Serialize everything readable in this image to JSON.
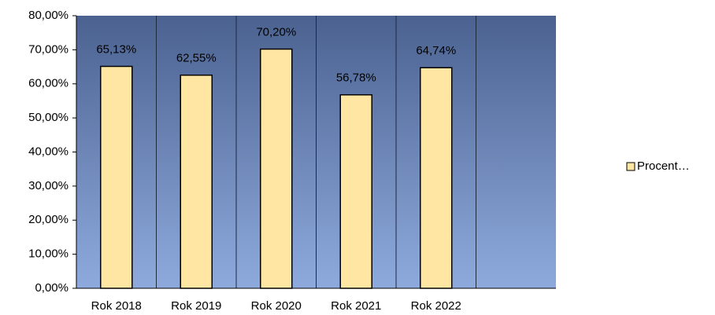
{
  "chart_data": {
    "type": "bar",
    "categories": [
      "Rok 2018",
      "Rok 2019",
      "Rok 2020",
      "Rok 2021",
      "Rok 2022",
      null
    ],
    "series": [
      {
        "name": "Procent…",
        "color": "#ffe6a3",
        "values": [
          65.13,
          62.55,
          70.2,
          56.78,
          64.74,
          null
        ],
        "value_labels": [
          "65,13%",
          "62,55%",
          "70,20%",
          "56,78%",
          "64,74%",
          null
        ]
      }
    ],
    "ylim": [
      0,
      80
    ],
    "yticks": [
      {
        "value": 0,
        "label": "0,00%"
      },
      {
        "value": 10,
        "label": "10,00%"
      },
      {
        "value": 20,
        "label": "20,00%"
      },
      {
        "value": 30,
        "label": "30,00%"
      },
      {
        "value": 40,
        "label": "40,00%"
      },
      {
        "value": 50,
        "label": "50,00%"
      },
      {
        "value": 60,
        "label": "60,00%"
      },
      {
        "value": 70,
        "label": "70,00%"
      },
      {
        "value": 80,
        "label": "80,00%"
      }
    ],
    "grid": false,
    "legend": "right"
  }
}
